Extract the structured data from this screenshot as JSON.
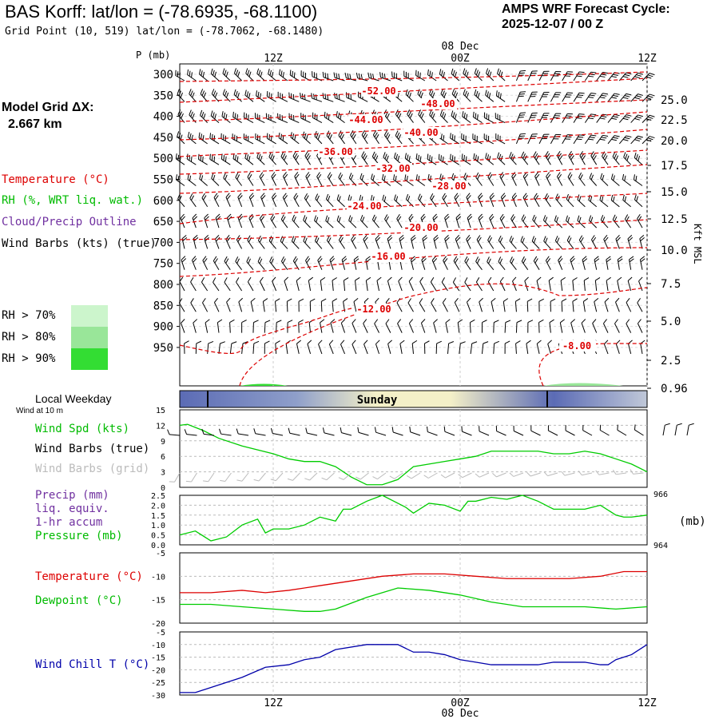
{
  "header": {
    "title": "BAS Korff:  lat/lon = (-78.6935, -68.1100)",
    "subtitle": "Grid Point (10, 519) lat/lon = (-78.7062, -68.1480)",
    "cycle_line1": "AMPS WRF Forecast Cycle:",
    "cycle_line2": "2025-12-07 / 00  Z"
  },
  "model_grid": {
    "label": "Model Grid ΔX:",
    "value": "2.667 km"
  },
  "legend": {
    "temperature": "Temperature (°C)",
    "rh": "RH (%, WRT liq. wat.)",
    "cloud": "Cloud/Precip Outline",
    "wind": "Wind Barbs (kts) (true)",
    "rh70": "RH > 70%",
    "rh80": "RH > 80%",
    "rh90": "RH > 90%"
  },
  "colors": {
    "temperature": "#dd0000",
    "rh_label": "#00bb00",
    "cloud_label": "#7030a0",
    "rh70": "#ccf5cc",
    "rh80": "#99e699",
    "rh90": "#33dd33",
    "windchill": "#0000aa",
    "dewpoint": "#00cc00",
    "grey_barb": "#bbbbbb"
  },
  "time_axis": {
    "top_labels": [
      "12Z",
      "00Z",
      "12Z"
    ],
    "date_label": "08 Dec",
    "bottom_labels": [
      "12Z",
      "00Z",
      "12Z"
    ]
  },
  "weekday": {
    "label": "Local Weekday",
    "day": "Sunday",
    "wind_note": "Wind at 10 m"
  },
  "right_axis_label": "Kft MSL",
  "chart_data": [
    {
      "type": "heatmap",
      "name_hint": "cross-section",
      "ylabel": "P (mb)",
      "pressure_levels": [
        "300",
        "350",
        "400",
        "450",
        "500",
        "550",
        "600",
        "650",
        "700",
        "750",
        "800",
        "850",
        "900",
        "950"
      ],
      "height_labels_kft": [
        "25.0",
        "22.5",
        "20.0",
        "17.5",
        "15.0",
        "12.5",
        "10.0",
        "7.5",
        "5.0",
        "2.5",
        "0.96"
      ],
      "temperature_contour_labels": [
        "-52.00",
        "-48.00",
        "-44.00",
        "-40.00",
        "-36.00",
        "-32.00",
        "-28.00",
        "-24.00",
        "-20.00",
        "-16.00",
        "-12.00",
        "-8.00"
      ],
      "time_hours": [
        0,
        60
      ]
    },
    {
      "type": "line",
      "ylabel": "Wind Spd (kts)",
      "ylabels": [
        "15",
        "12",
        "9",
        "6",
        "3",
        "0"
      ],
      "ylim": [
        0,
        15
      ],
      "labels": {
        "line1": "Wind Spd (kts)",
        "line2": "Wind Barbs (true)",
        "line3": "Wind Barbs (grid)"
      },
      "x": [
        0,
        1,
        3,
        5,
        8,
        12,
        14,
        16,
        18,
        20,
        22,
        24,
        26,
        28,
        30,
        32,
        34,
        36,
        38,
        40,
        42,
        44,
        46,
        48,
        50,
        52,
        54,
        56,
        58,
        60
      ],
      "values": [
        12,
        12.2,
        11,
        9.5,
        8,
        6.5,
        5.5,
        5,
        5,
        4,
        2,
        0.5,
        0.5,
        1.5,
        4,
        4.5,
        5,
        5.5,
        6,
        7,
        7,
        7,
        7,
        6.5,
        6.5,
        7,
        6.5,
        5.5,
        4.5,
        3
      ]
    },
    {
      "type": "line",
      "ylabel": "Precip (mm)",
      "ylabels": [
        "2.5",
        "2.0",
        "1.5",
        "1.0",
        "0.5",
        "0.0"
      ],
      "ylim": [
        0,
        2.5
      ],
      "right_labels": [
        "966",
        "964"
      ],
      "right_unit": "(mb)",
      "labels": {
        "line1": "Precip (mm)",
        "line2": "liq. equiv.",
        "line3": "1-hr accum",
        "line4": "Pressure (mb)"
      },
      "x": [
        0,
        2,
        4,
        6,
        8,
        10,
        11,
        12,
        14,
        16,
        18,
        20,
        21,
        22,
        24,
        26,
        28,
        29,
        30,
        32,
        34,
        36,
        37,
        38,
        40,
        42,
        44,
        46,
        48,
        50,
        52,
        54,
        56,
        57,
        58,
        60
      ],
      "values": [
        0.5,
        0.7,
        0.2,
        0.4,
        1.0,
        1.3,
        0.6,
        0.8,
        0.8,
        1.0,
        1.4,
        1.2,
        1.8,
        1.8,
        2.2,
        2.5,
        2.1,
        1.9,
        1.6,
        2.1,
        2.0,
        1.7,
        2.2,
        2.2,
        2.4,
        2.3,
        2.5,
        2.2,
        1.8,
        1.8,
        1.8,
        2.0,
        1.5,
        1.4,
        1.4,
        1.5
      ]
    },
    {
      "type": "line",
      "ylabels": [
        "-5",
        "-10",
        "-15",
        "-20"
      ],
      "ylim": [
        -20,
        -5
      ],
      "labels": {
        "temperature": "Temperature (°C)",
        "dewpoint": "Dewpoint (°C)"
      },
      "series": [
        {
          "name": "Temperature (°C)",
          "x": [
            0,
            4,
            8,
            11,
            14,
            18,
            22,
            26,
            30,
            34,
            38,
            42,
            46,
            50,
            54,
            57,
            60
          ],
          "values": [
            -13.5,
            -13.5,
            -13,
            -13.5,
            -13,
            -12,
            -11,
            -10,
            -9.5,
            -9.5,
            -10,
            -10.5,
            -10.5,
            -10.5,
            -10,
            -9,
            -9
          ]
        },
        {
          "name": "Dewpoint (°C)",
          "x": [
            0,
            4,
            8,
            12,
            16,
            18,
            20,
            24,
            28,
            32,
            36,
            40,
            44,
            48,
            52,
            56,
            60
          ],
          "values": [
            -16,
            -16,
            -16.5,
            -17,
            -17.5,
            -17.5,
            -17,
            -14.5,
            -12.5,
            -13,
            -14,
            -15.5,
            -16.5,
            -16.5,
            -16.5,
            -17,
            -16.5
          ]
        }
      ]
    },
    {
      "type": "line",
      "ylabel": "Wind Chill T (°C)",
      "ylabels": [
        "-5",
        "-10",
        "-15",
        "-20",
        "-25",
        "-30"
      ],
      "ylim": [
        -30,
        -5
      ],
      "x": [
        0,
        2,
        5,
        8,
        11,
        14,
        16,
        18,
        20,
        24,
        28,
        30,
        32,
        34,
        36,
        38,
        40,
        42,
        46,
        48,
        50,
        52,
        54,
        55,
        56,
        58,
        60
      ],
      "values": [
        -29,
        -29,
        -26,
        -23,
        -19,
        -18,
        -16,
        -15,
        -12,
        -10,
        -10,
        -13,
        -13,
        -14,
        -16,
        -17,
        -18,
        -18,
        -18,
        -17,
        -17,
        -17,
        -18,
        -18,
        -16,
        -14,
        -10
      ]
    }
  ]
}
